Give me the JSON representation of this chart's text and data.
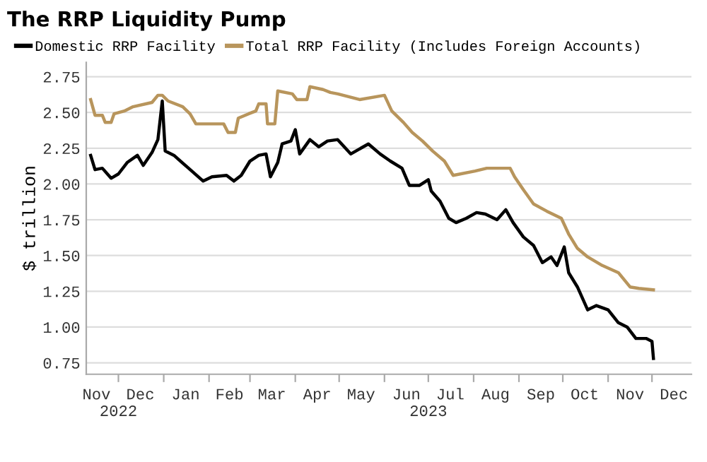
{
  "chart_data": {
    "type": "line",
    "title": "The RRP Liquidity Pump",
    "ylabel": "$ trillion",
    "x": [
      "2022-11-12",
      "2022-11-15",
      "2022-11-20",
      "2022-11-26",
      "2022-12-01",
      "2022-12-07",
      "2022-12-14",
      "2022-12-18",
      "2022-12-24",
      "2022-12-28",
      "2022-12-31",
      "2023-01-02",
      "2023-01-08",
      "2023-01-18",
      "2023-01-28",
      "2023-02-03",
      "2023-02-13",
      "2023-02-18",
      "2023-02-23",
      "2023-03-01",
      "2023-03-07",
      "2023-03-12",
      "2023-03-15",
      "2023-03-20",
      "2023-03-23",
      "2023-03-29",
      "2023-04-01",
      "2023-04-04",
      "2023-04-11",
      "2023-04-17",
      "2023-04-23",
      "2023-04-30",
      "2023-05-09",
      "2023-05-21",
      "2023-05-29",
      "2023-06-05",
      "2023-06-13",
      "2023-06-18",
      "2023-06-25",
      "2023-07-01",
      "2023-07-03",
      "2023-07-09",
      "2023-07-15",
      "2023-07-20",
      "2023-07-27",
      "2023-08-03",
      "2023-08-09",
      "2023-08-17",
      "2023-08-23",
      "2023-08-28",
      "2023-09-04",
      "2023-09-11",
      "2023-09-17",
      "2023-09-23",
      "2023-09-27",
      "2023-10-02",
      "2023-10-05",
      "2023-10-11",
      "2023-10-18",
      "2023-10-24",
      "2023-11-01",
      "2023-11-08",
      "2023-11-14",
      "2023-11-20",
      "2023-11-27",
      "2023-12-01",
      "2023-12-02"
    ],
    "series": [
      {
        "name": "Domestic RRP Facility",
        "color": "#000000",
        "values": [
          2.2,
          2.1,
          2.11,
          2.04,
          2.07,
          2.15,
          2.2,
          2.13,
          2.22,
          2.31,
          2.58,
          2.23,
          2.2,
          2.11,
          2.02,
          2.05,
          2.06,
          2.02,
          2.06,
          2.16,
          2.2,
          2.21,
          2.05,
          2.15,
          2.28,
          2.3,
          2.38,
          2.21,
          2.31,
          2.26,
          2.3,
          2.31,
          2.21,
          2.28,
          2.21,
          2.16,
          2.11,
          1.99,
          1.99,
          2.03,
          1.95,
          1.88,
          1.76,
          1.73,
          1.76,
          1.8,
          1.79,
          1.75,
          1.82,
          1.73,
          1.63,
          1.57,
          1.45,
          1.49,
          1.43,
          1.56,
          1.38,
          1.28,
          1.12,
          1.15,
          1.12,
          1.03,
          1.0,
          0.92,
          0.92,
          0.9,
          0.78
        ]
      },
      {
        "name": "Total RRP Facility (Includes Foreign Accounts)",
        "color": "#b8955c",
        "x": [
          "2022-11-12",
          "2022-11-15",
          "2022-11-20",
          "2022-11-22",
          "2022-11-26",
          "2022-11-28",
          "2022-12-05",
          "2022-12-11",
          "2022-12-24",
          "2022-12-28",
          "2022-12-31",
          "2023-01-04",
          "2023-01-14",
          "2023-01-19",
          "2023-01-23",
          "2023-02-11",
          "2023-02-14",
          "2023-02-19",
          "2023-02-21",
          "2023-02-28",
          "2023-03-05",
          "2023-03-07",
          "2023-03-12",
          "2023-03-13",
          "2023-03-18",
          "2023-03-20",
          "2023-03-30",
          "2023-04-02",
          "2023-04-09",
          "2023-04-11",
          "2023-04-20",
          "2023-04-25",
          "2023-04-30",
          "2023-05-15",
          "2023-06-01",
          "2023-06-06",
          "2023-06-14",
          "2023-06-20",
          "2023-06-27",
          "2023-07-04",
          "2023-07-12",
          "2023-07-18",
          "2023-08-02",
          "2023-08-10",
          "2023-08-26",
          "2023-08-29",
          "2023-09-04",
          "2023-09-11",
          "2023-09-20",
          "2023-09-30",
          "2023-10-05",
          "2023-10-11",
          "2023-10-18",
          "2023-10-28",
          "2023-11-08",
          "2023-11-16",
          "2023-11-22",
          "2023-12-02"
        ],
        "values": [
          2.59,
          2.48,
          2.48,
          2.43,
          2.43,
          2.49,
          2.51,
          2.54,
          2.57,
          2.62,
          2.62,
          2.58,
          2.54,
          2.49,
          2.42,
          2.42,
          2.36,
          2.36,
          2.46,
          2.49,
          2.51,
          2.56,
          2.56,
          2.42,
          2.42,
          2.65,
          2.63,
          2.59,
          2.59,
          2.68,
          2.66,
          2.64,
          2.63,
          2.59,
          2.62,
          2.51,
          2.43,
          2.36,
          2.3,
          2.23,
          2.16,
          2.06,
          2.09,
          2.11,
          2.11,
          2.05,
          1.96,
          1.86,
          1.81,
          1.76,
          1.65,
          1.55,
          1.49,
          1.43,
          1.38,
          1.28,
          1.27,
          1.26
        ]
      }
    ],
    "xlim": [
      "2022-11-09",
      "2023-12-28"
    ],
    "xticks": [
      {
        "value": "2022-11-16",
        "label": "Nov"
      },
      {
        "value": "2022-12-01",
        "label": null
      },
      {
        "value": "2022-12-16",
        "label": "Dec"
      },
      {
        "value": "2023-01-01",
        "label": null
      },
      {
        "value": "2023-01-16",
        "label": "Jan"
      },
      {
        "value": "2023-02-01",
        "label": null
      },
      {
        "value": "2023-02-15",
        "label": "Feb"
      },
      {
        "value": "2023-03-01",
        "label": null
      },
      {
        "value": "2023-03-16",
        "label": "Mar"
      },
      {
        "value": "2023-04-01",
        "label": null
      },
      {
        "value": "2023-04-16",
        "label": "Apr"
      },
      {
        "value": "2023-05-01",
        "label": null
      },
      {
        "value": "2023-05-16",
        "label": "May"
      },
      {
        "value": "2023-06-01",
        "label": null
      },
      {
        "value": "2023-06-16",
        "label": "Jun"
      },
      {
        "value": "2023-07-01",
        "label": null
      },
      {
        "value": "2023-07-16",
        "label": "Jul"
      },
      {
        "value": "2023-08-01",
        "label": null
      },
      {
        "value": "2023-08-16",
        "label": "Aug"
      },
      {
        "value": "2023-09-01",
        "label": null
      },
      {
        "value": "2023-09-16",
        "label": "Sep"
      },
      {
        "value": "2023-10-01",
        "label": null
      },
      {
        "value": "2023-10-16",
        "label": "Oct"
      },
      {
        "value": "2023-11-01",
        "label": null
      },
      {
        "value": "2023-11-16",
        "label": "Nov"
      },
      {
        "value": "2023-12-01",
        "label": null
      },
      {
        "value": "2023-12-16",
        "label": "Dec"
      }
    ],
    "x2lim": [
      "2022-11-09",
      "2023-12-28"
    ],
    "x2ticks": [
      {
        "value": "2022-12-01",
        "label": "2022"
      },
      {
        "value": "2023-07-01",
        "label": "2023"
      }
    ],
    "ylim": [
      0.67,
      2.85
    ],
    "yticks": [
      {
        "value": 0.75,
        "label": "0.75"
      },
      {
        "value": 1,
        "label": "1.00"
      },
      {
        "value": 1.25,
        "label": "1.25"
      },
      {
        "value": 1.5,
        "label": "1.50"
      },
      {
        "value": 1.75,
        "label": "1.75"
      },
      {
        "value": 2,
        "label": "2.00"
      },
      {
        "value": 2.25,
        "label": "2.25"
      },
      {
        "value": 2.5,
        "label": "2.50"
      },
      {
        "value": 2.75,
        "label": "2.75"
      }
    ],
    "grid": "y",
    "legend": "top left",
    "line_style": "solid",
    "marker": "none"
  }
}
